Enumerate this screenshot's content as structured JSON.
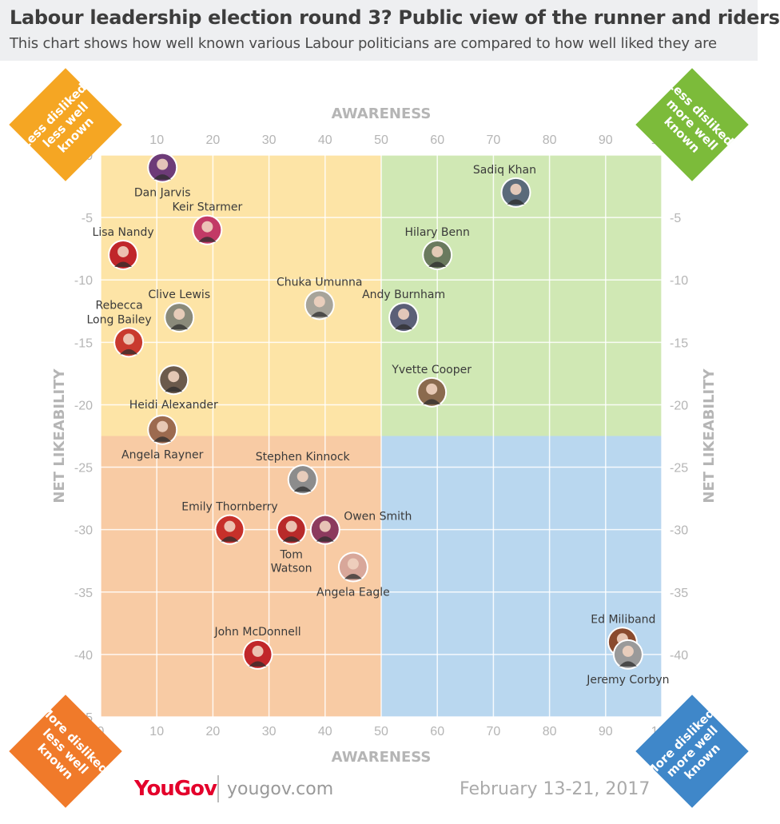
{
  "header": {
    "title": "Labour leadership election round 3? Public view of the runner and riders",
    "subtitle": "This chart shows how well known various Labour politicians are compared to how well liked they are"
  },
  "corners": {
    "top_left": {
      "line1": "Less disliked,",
      "line2": "less well known",
      "color": "#f5a623"
    },
    "top_right": {
      "line1": "Less disliked,",
      "line2": "more well known",
      "color": "#7cbb3a"
    },
    "bottom_left": {
      "line1": "More disliked,",
      "line2": "less well known",
      "color": "#f07a2a"
    },
    "bottom_right": {
      "line1": "More disliked,",
      "line2": "more well known",
      "color": "#3f87c9"
    }
  },
  "footer": {
    "logo": "YouGov",
    "url": "yougov.com",
    "date": "February 13-21, 2017"
  },
  "chart_data": {
    "type": "scatter",
    "xlabel": "AWARENESS",
    "ylabel": "NET LIKEABILITY",
    "xlim": [
      0,
      100
    ],
    "ylim": [
      -45,
      0
    ],
    "x_ticks": [
      "0",
      "10",
      "20",
      "30",
      "40",
      "50",
      "60",
      "70",
      "80",
      "90",
      "100"
    ],
    "y_ticks": [
      "0",
      "-5",
      "-10",
      "-15",
      "-20",
      "-25",
      "-30",
      "-35",
      "-40",
      "-45"
    ],
    "quadrant_split": {
      "x": 50,
      "y": -22.5
    },
    "quadrant_colors": {
      "top_left": "#fde4a6",
      "top_right": "#d0e8b4",
      "bottom_left": "#f8cba4",
      "bottom_right": "#b9d7ef"
    },
    "grid": true,
    "points": [
      {
        "name": "Dan Jarvis",
        "x": 11,
        "y": -1,
        "color": "#6d3b78"
      },
      {
        "name": "Keir Starmer",
        "x": 19,
        "y": -6,
        "color": "#c23a66"
      },
      {
        "name": "Lisa Nandy",
        "x": 4,
        "y": -8,
        "color": "#c0262a"
      },
      {
        "name": "Clive Lewis",
        "x": 14,
        "y": -13,
        "color": "#8a8a7a"
      },
      {
        "name": "Rebecca Long Bailey",
        "x": 5,
        "y": -15,
        "color": "#c93a2e"
      },
      {
        "name": "Heidi Alexander",
        "x": 13,
        "y": -18,
        "color": "#6b5a4c"
      },
      {
        "name": "Angela Rayner",
        "x": 11,
        "y": -22,
        "color": "#9c6a4f"
      },
      {
        "name": "Chuka Umunna",
        "x": 39,
        "y": -12,
        "color": "#a7a49a"
      },
      {
        "name": "Sadiq Khan",
        "x": 74,
        "y": -3,
        "color": "#5a6a7a"
      },
      {
        "name": "Hilary Benn",
        "x": 60,
        "y": -8,
        "color": "#6a7a5e"
      },
      {
        "name": "Andy Burnham",
        "x": 54,
        "y": -13,
        "color": "#5b5f77"
      },
      {
        "name": "Yvette Cooper",
        "x": 59,
        "y": -19,
        "color": "#8a6a4e"
      },
      {
        "name": "Stephen Kinnock",
        "x": 36,
        "y": -26,
        "color": "#8c8c8c"
      },
      {
        "name": "Emily Thornberry",
        "x": 23,
        "y": -30,
        "color": "#c7302a"
      },
      {
        "name": "Tom Watson",
        "x": 34,
        "y": -30,
        "color": "#b82a2a"
      },
      {
        "name": "Owen Smith",
        "x": 40,
        "y": -30,
        "color": "#8c3a5e"
      },
      {
        "name": "Angela Eagle",
        "x": 45,
        "y": -33,
        "color": "#d8a79a"
      },
      {
        "name": "John McDonnell",
        "x": 28,
        "y": -40,
        "color": "#c1262a"
      },
      {
        "name": "Ed Miliband",
        "x": 93,
        "y": -39,
        "color": "#8a4b2e"
      },
      {
        "name": "Jeremy Corbyn",
        "x": 94,
        "y": -40,
        "color": "#9a9a9a"
      }
    ]
  }
}
